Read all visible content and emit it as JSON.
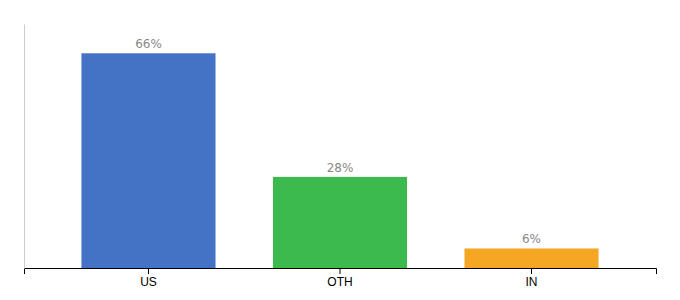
{
  "chart_data": {
    "type": "bar",
    "categories": [
      "US",
      "OTH",
      "IN"
    ],
    "values": [
      66,
      28,
      6
    ],
    "value_labels": [
      "66%",
      "28%",
      "6%"
    ],
    "colors": [
      "#4472c4",
      "#3dba4e",
      "#f5a623"
    ],
    "data_labels": true,
    "ylim": [
      0,
      75
    ],
    "tick_labels": "x"
  }
}
